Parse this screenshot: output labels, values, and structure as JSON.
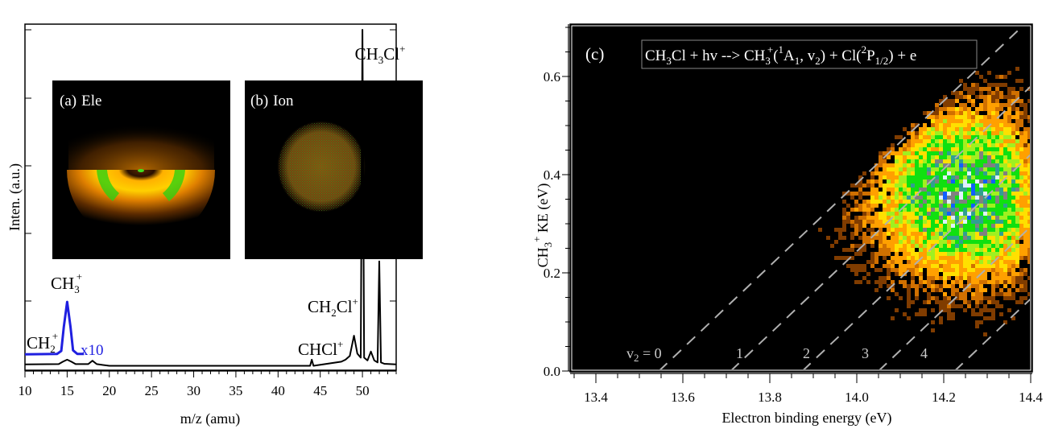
{
  "chart_data": [
    {
      "type": "line",
      "panel": "left",
      "xlabel": "m/z (amu)",
      "ylabel": "Inten. (a.u.)",
      "xlim": [
        10,
        54
      ],
      "ylim": [
        0,
        1
      ],
      "x_ticks": [
        "10",
        "15",
        "20",
        "25",
        "30",
        "35",
        "40",
        "45",
        "50"
      ],
      "x_tick_values": [
        10,
        15,
        20,
        25,
        30,
        35,
        40,
        45,
        50
      ],
      "series": [
        {
          "name": "spectrum",
          "color": "#000000",
          "x": [
            10,
            14,
            14.5,
            15,
            15.5,
            16,
            17.5,
            18,
            18.5,
            20,
            43.8,
            44,
            44.2,
            47.5,
            48,
            48.5,
            49,
            49.4,
            49.8,
            50,
            50.2,
            50.6,
            51,
            51.4,
            51.8,
            52,
            52.2,
            52.6,
            54
          ],
          "y": [
            0.01,
            0.011,
            0.018,
            0.024,
            0.018,
            0.011,
            0.011,
            0.021,
            0.011,
            0.006,
            0.006,
            0.024,
            0.006,
            0.018,
            0.024,
            0.035,
            0.095,
            0.042,
            0.03,
            1.0,
            0.03,
            0.022,
            0.048,
            0.022,
            0.016,
            0.315,
            0.016,
            0.012,
            0.01
          ]
        },
        {
          "name": "x10",
          "color": "#1f1fe0",
          "x": [
            10,
            13.8,
            14.3,
            14.6,
            15,
            15.4,
            15.7,
            16.2,
            17
          ],
          "y": [
            0.04,
            0.041,
            0.05,
            0.12,
            0.195,
            0.12,
            0.052,
            0.041,
            0.041
          ]
        }
      ],
      "annotations": {
        "ch3cl": {
          "base": "CH",
          "sub": "3",
          "mid": "Cl",
          "sup": "+"
        },
        "ch3": {
          "base": "CH",
          "sub": "3",
          "sup": "+"
        },
        "ch2": {
          "base": "CH",
          "sub": "2",
          "sup": "+"
        },
        "ch2cl": {
          "base": "CH",
          "sub": "2",
          "mid": "Cl",
          "sup": "+"
        },
        "chcl": {
          "base": "CHCl",
          "sup": "+"
        },
        "x10": "x10"
      },
      "insets": [
        {
          "label": "(a)",
          "name": "Ele"
        },
        {
          "label": "(b)",
          "name": "Ion"
        }
      ]
    },
    {
      "type": "heatmap",
      "panel": "right",
      "panel_label": "(c)",
      "xlabel": "Electron binding energy (eV)",
      "ylabel_base": "CH",
      "ylabel_sub": "3",
      "ylabel_sup": "+",
      "ylabel_rest": " KE (eV)",
      "xlim": [
        13.32,
        14.4
      ],
      "ylim": [
        0.0,
        0.71
      ],
      "x_ticks": [
        "13.4",
        "13.6",
        "13.8",
        "14.0",
        "14.2",
        "14.4"
      ],
      "x_tick_values": [
        13.4,
        13.6,
        13.8,
        14.0,
        14.2,
        14.4
      ],
      "y_ticks": [
        "0.0",
        "0.2",
        "0.4",
        "0.6"
      ],
      "y_tick_values": [
        0.0,
        0.2,
        0.4,
        0.6
      ],
      "reaction": {
        "p1": "CH",
        "p1sub": "3",
        "p2": "Cl + hv --> CH",
        "p2sub": "3",
        "p2sup": "+",
        "p3": "(",
        "p3sup": "1",
        "p4": "A",
        "p4sub": "1",
        "p5": ", v",
        "p5sub": "2",
        "p6": ") + Cl(",
        "p6sup": "2",
        "p7": "P",
        "p7sub": "1/2",
        "p8": ") + e"
      },
      "v2_lines": {
        "thresholds_eV": [
          13.545,
          13.71,
          13.875,
          14.05,
          14.225,
          14.4
        ],
        "slope_eV_per_eV": 0.84
      },
      "v2_labels": [
        {
          "text_base": "v",
          "text_sub": "2",
          "text_rest": " = 0"
        },
        {
          "text": "1"
        },
        {
          "text": "2"
        },
        {
          "text": "3"
        },
        {
          "text": "4"
        }
      ],
      "density_peak": {
        "x": 14.25,
        "y": 0.36
      },
      "colors": {
        "low": "#c86400",
        "mid": "#ffb000",
        "high_yellow": "#ffee00",
        "green": "#00e000",
        "teal": "#20a0a0",
        "blue": "#0000ff",
        "white": "#ffffff"
      }
    }
  ]
}
